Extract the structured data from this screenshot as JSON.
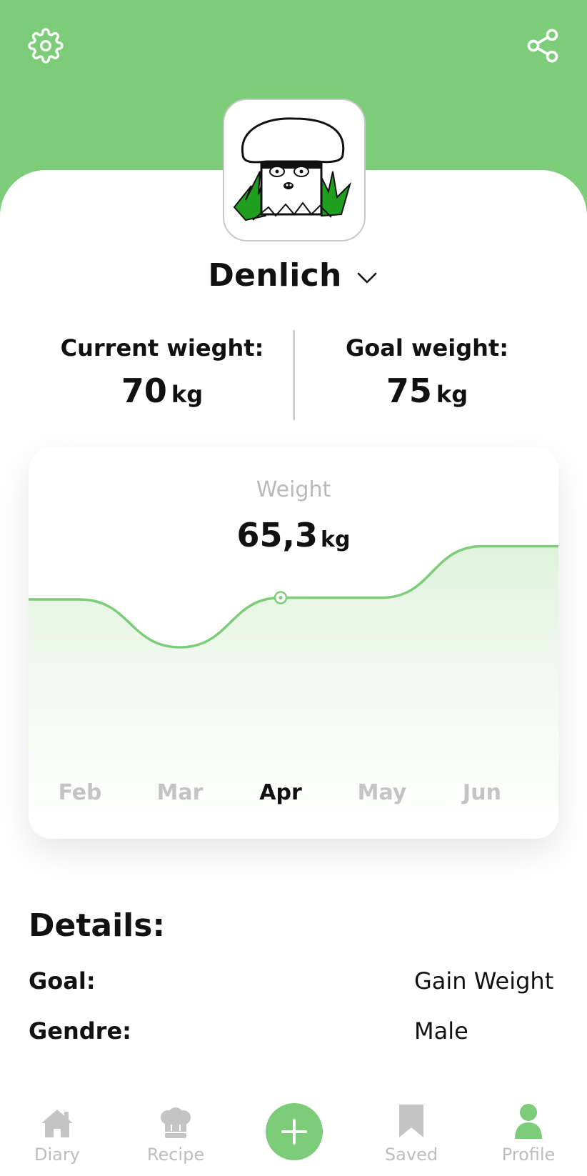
{
  "profile": {
    "username": "Denlich",
    "current_weight_label": "Current wieght:",
    "current_weight_value": "70",
    "goal_weight_label": "Goal weight:",
    "goal_weight_value": "75",
    "unit": "kg"
  },
  "chart_data": {
    "type": "area",
    "title": "Weight",
    "selected_value": "65,3",
    "unit": "kg",
    "categories": [
      "Feb",
      "Mar",
      "Apr",
      "May",
      "Jun"
    ],
    "selected_category": "Apr",
    "values": [
      65.2,
      62.5,
      65.3,
      65.3,
      68.2
    ],
    "grid": false,
    "colors": {
      "line": "#7dcc79",
      "fill": "#e3f4e1"
    }
  },
  "details": {
    "title": "Details:",
    "rows": [
      {
        "key": "Goal:",
        "value": "Gain Weight"
      },
      {
        "key": "Gendre:",
        "value": "Male"
      }
    ]
  },
  "nav": {
    "items": [
      {
        "label": "Diary",
        "icon": "home-icon"
      },
      {
        "label": "Recipe",
        "icon": "chef-hat-icon"
      },
      {
        "label": "",
        "icon": "plus-icon"
      },
      {
        "label": "Saved",
        "icon": "bookmark-icon"
      },
      {
        "label": "Profile",
        "icon": "user-icon"
      }
    ],
    "active": "Profile"
  },
  "colors": {
    "accent": "#7dcc79",
    "muted": "#bdbdbd"
  },
  "icons": {
    "settings": "gear-icon",
    "share": "share-icon",
    "dropdown": "chevron-down-icon"
  }
}
